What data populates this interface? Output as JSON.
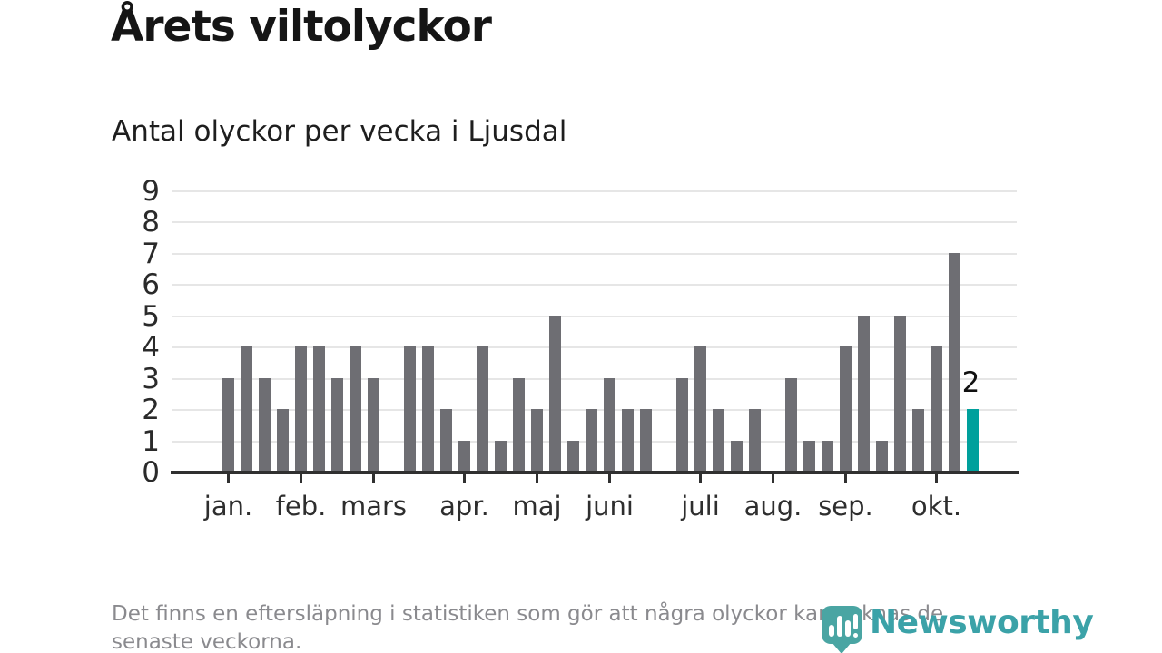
{
  "page": {
    "title": "Årets viltolyckor",
    "subtitle": "Antal olyckor per vecka i Ljusdal",
    "footer_line1": "Det finns en eftersläpning i statistiken som gör att några olyckor kan saknas de",
    "footer_line2": "senaste veckorna.",
    "brand": "Newsworthy"
  },
  "colors": {
    "bar": "#6e6e73",
    "highlight": "#00a09c",
    "gridline": "#e6e6e6",
    "axis": "#303030",
    "footer_text": "#8a8a8e",
    "logo_teal": "#4aa5a3",
    "wordmark_teal": "#3ba2a8"
  },
  "chart_data": {
    "type": "bar",
    "title": "Årets viltolyckor",
    "subtitle": "Antal olyckor per vecka i Ljusdal",
    "xlabel": "",
    "ylabel": "",
    "x_unit": "vecka",
    "values": [
      3,
      4,
      3,
      2,
      4,
      4,
      3,
      4,
      3,
      0,
      4,
      4,
      2,
      1,
      4,
      1,
      3,
      2,
      5,
      1,
      2,
      3,
      2,
      2,
      0,
      3,
      4,
      2,
      1,
      2,
      0,
      3,
      1,
      1,
      4,
      5,
      1,
      5,
      2,
      4,
      7,
      2
    ],
    "weeks_count": 42,
    "ylim": [
      0,
      9
    ],
    "yticks": [
      0,
      1,
      2,
      3,
      4,
      5,
      6,
      7,
      8,
      9
    ],
    "grid": true,
    "legend": "none",
    "month_ticks": [
      {
        "label": "jan.",
        "week": 1
      },
      {
        "label": "feb.",
        "week": 5
      },
      {
        "label": "mars",
        "week": 9
      },
      {
        "label": "apr.",
        "week": 14
      },
      {
        "label": "maj",
        "week": 18
      },
      {
        "label": "juni",
        "week": 22
      },
      {
        "label": "juli",
        "week": 27
      },
      {
        "label": "aug.",
        "week": 31
      },
      {
        "label": "sep.",
        "week": 35
      },
      {
        "label": "okt.",
        "week": 40
      }
    ],
    "highlight_index": 41,
    "highlight_label": "2"
  }
}
